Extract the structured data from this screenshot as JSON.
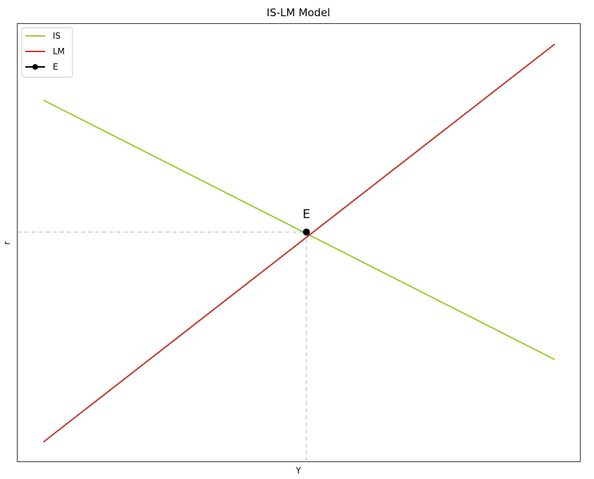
{
  "chart_data": {
    "type": "line",
    "title": "IS-LM Model",
    "xlabel": "Y",
    "ylabel": "r",
    "xlim": [
      0,
      100
    ],
    "ylim": [
      0,
      100
    ],
    "grid": false,
    "ticks_visible": false,
    "legend": {
      "placement": "top-left",
      "entries": [
        "IS",
        "LM",
        "E"
      ]
    },
    "series": [
      {
        "name": "IS",
        "color": "#9acd32",
        "x": [
          4.6,
          95.4
        ],
        "y": [
          82.6,
          23.4
        ]
      },
      {
        "name": "LM",
        "color": "#c0392b",
        "x": [
          4.6,
          95.4
        ],
        "y": [
          4.6,
          95.4
        ]
      },
      {
        "name": "E",
        "color": "#000000",
        "marker": "circle",
        "x": [
          51.3
        ],
        "y": [
          52.5
        ]
      }
    ],
    "reference_lines": {
      "style": "dashed",
      "color": "#cccccc",
      "horizontal_at_y": 52.5,
      "vertical_at_x": 51.3
    },
    "annotations": [
      {
        "text": "E",
        "x": 51.3,
        "y": 52.5
      }
    ]
  }
}
